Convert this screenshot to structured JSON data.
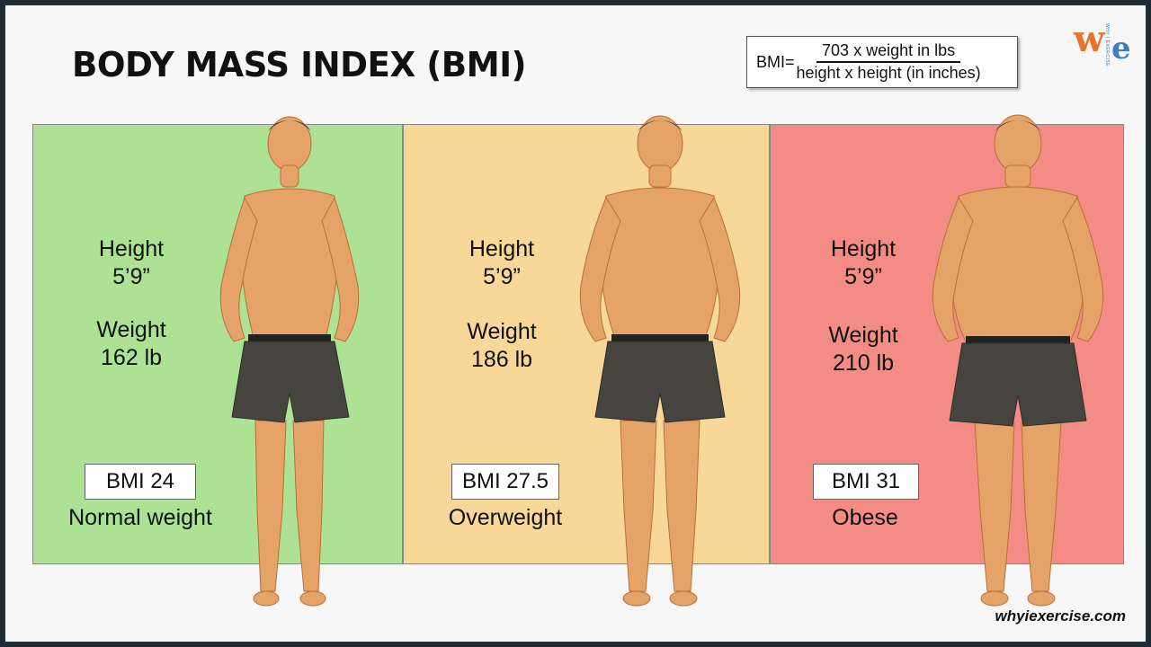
{
  "title": "Body Mass Index (BMI)",
  "formula": {
    "lhs": "BMI=",
    "numerator": "703 x weight in lbs",
    "denominator": "height x height (in inches)"
  },
  "logo": {
    "w": "w",
    "e": "e",
    "tag": "WHY I EXERCISE"
  },
  "colors": {
    "normal": "#ade294",
    "overweight": "#f8d898",
    "obese": "#f48c86",
    "skin": "#e5a367",
    "shorts": "#45443f"
  },
  "panels": [
    {
      "height_label": "Height",
      "height_value": "5’9”",
      "weight_label": "Weight",
      "weight_value": "162 lb",
      "bmi": "BMI 24",
      "category": "Normal weight"
    },
    {
      "height_label": "Height",
      "height_value": "5’9”",
      "weight_label": "Weight",
      "weight_value": "186 lb",
      "bmi": "BMI 27.5",
      "category": "Overweight"
    },
    {
      "height_label": "Height",
      "height_value": "5’9”",
      "weight_label": "Weight",
      "weight_value": "210 lb",
      "bmi": "BMI 31",
      "category": "Obese"
    }
  ],
  "website": "whyiexercise.com"
}
